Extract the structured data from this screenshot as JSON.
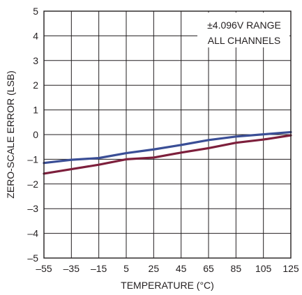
{
  "chart_data": {
    "type": "line",
    "title": "",
    "xlabel": "TEMPERATURE (°C)",
    "ylabel": "ZERO-SCALE ERROR (LSB)",
    "xlim": [
      -55,
      125
    ],
    "ylim": [
      -5,
      5
    ],
    "xticks": [
      -55,
      -35,
      -15,
      5,
      25,
      45,
      65,
      85,
      105,
      125
    ],
    "yticks": [
      -5,
      -4,
      -3,
      -2,
      -1,
      0,
      1,
      2,
      3,
      4,
      5
    ],
    "xtick_labels": [
      "–55",
      "–35",
      "–15",
      "5",
      "25",
      "45",
      "65",
      "85",
      "105",
      "125"
    ],
    "ytick_labels": [
      "–5",
      "–4",
      "–3",
      "–2",
      "–1",
      "0",
      "1",
      "2",
      "3",
      "4",
      "5"
    ],
    "grid": true,
    "annotations": [
      "±4.096V RANGE",
      "ALL CHANNELS"
    ],
    "series": [
      {
        "color": "#3a4e96",
        "x": [
          -55,
          -35,
          -15,
          5,
          25,
          45,
          65,
          85,
          105,
          125
        ],
        "y": [
          -1.15,
          -1.02,
          -0.95,
          -0.75,
          -0.6,
          -0.42,
          -0.22,
          -0.08,
          0.01,
          0.1
        ]
      },
      {
        "color": "#7d1f3c",
        "x": [
          -55,
          -35,
          -15,
          5,
          25,
          45,
          65,
          85,
          105,
          125
        ],
        "y": [
          -1.58,
          -1.4,
          -1.22,
          -1.0,
          -0.93,
          -0.73,
          -0.55,
          -0.33,
          -0.2,
          -0.03
        ]
      }
    ]
  }
}
